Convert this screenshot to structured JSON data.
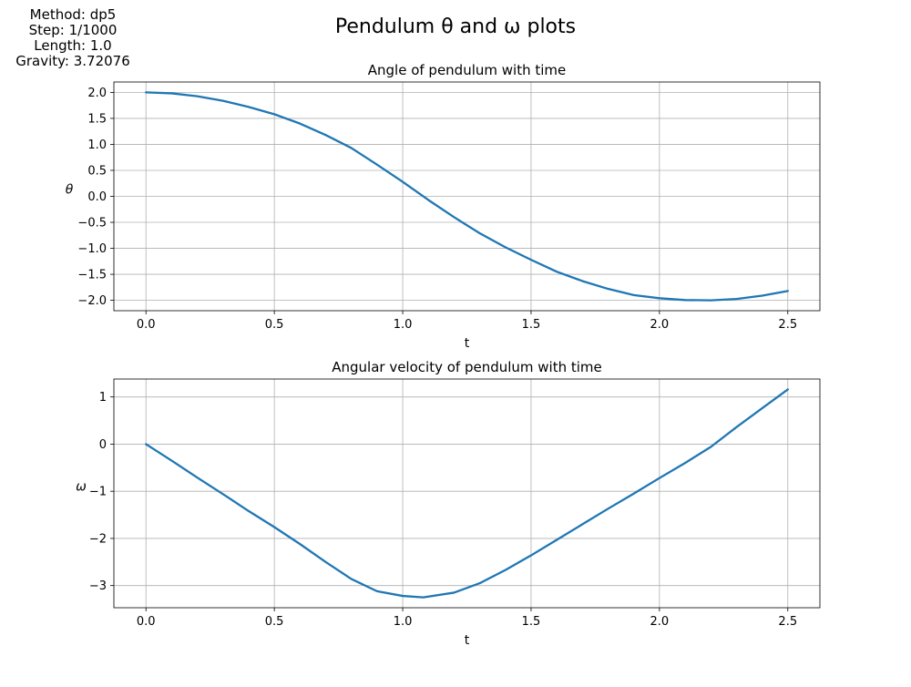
{
  "figure": {
    "suptitle": "Pendulum θ and ω plots",
    "info_lines": [
      "Method: dp5",
      "Step: 1/1000",
      "Length: 1.0",
      "Gravity: 3.72076"
    ]
  },
  "colors": {
    "line": "#1f77b4",
    "grid": "#b0b0b0",
    "axes": "#000000",
    "background": "#ffffff"
  },
  "chart_data": [
    {
      "type": "line",
      "title": "Angle of pendulum with time",
      "xlabel": "t",
      "ylabel": "θ",
      "xlim": [
        -0.125,
        2.625
      ],
      "ylim": [
        -2.2,
        2.2
      ],
      "xticks": [
        0.0,
        0.5,
        1.0,
        1.5,
        2.0,
        2.5
      ],
      "xticklabels": [
        "0.0",
        "0.5",
        "1.0",
        "1.5",
        "2.0",
        "2.5"
      ],
      "yticks": [
        2.0,
        1.5,
        1.0,
        0.5,
        0.0,
        -0.5,
        -1.0,
        -1.5,
        -2.0
      ],
      "yticklabels": [
        "2.0",
        "1.5",
        "1.0",
        "0.5",
        "0.0",
        "−0.5",
        "−1.0",
        "−1.5",
        "−2.0"
      ],
      "grid": true,
      "series": [
        {
          "x": [
            0.0,
            0.1,
            0.2,
            0.3,
            0.4,
            0.5,
            0.6,
            0.7,
            0.8,
            0.9,
            1.0,
            1.1,
            1.2,
            1.3,
            1.4,
            1.5,
            1.6,
            1.7,
            1.8,
            1.9,
            2.0,
            2.1,
            2.2,
            2.3,
            2.4,
            2.5
          ],
          "y": [
            2.0,
            1.982,
            1.926,
            1.838,
            1.72,
            1.58,
            1.4,
            1.18,
            0.93,
            0.61,
            0.28,
            -0.07,
            -0.4,
            -0.71,
            -0.98,
            -1.22,
            -1.45,
            -1.63,
            -1.78,
            -1.9,
            -1.96,
            -1.995,
            -2.0,
            -1.975,
            -1.91,
            -1.82
          ]
        }
      ]
    },
    {
      "type": "line",
      "title": "Angular velocity of pendulum with time",
      "xlabel": "t",
      "ylabel": "ω",
      "xlim": [
        -0.125,
        2.625
      ],
      "ylim": [
        -3.47,
        1.38
      ],
      "xticks": [
        0.0,
        0.5,
        1.0,
        1.5,
        2.0,
        2.5
      ],
      "xticklabels": [
        "0.0",
        "0.5",
        "1.0",
        "1.5",
        "2.0",
        "2.5"
      ],
      "yticks": [
        1,
        0,
        -1,
        -2,
        -3
      ],
      "yticklabels": [
        "1",
        "0",
        "−1",
        "−2",
        "−3"
      ],
      "grid": true,
      "series": [
        {
          "x": [
            0.0,
            0.1,
            0.2,
            0.3,
            0.4,
            0.5,
            0.6,
            0.7,
            0.8,
            0.9,
            1.0,
            1.08,
            1.2,
            1.3,
            1.4,
            1.5,
            1.6,
            1.7,
            1.8,
            1.9,
            2.0,
            2.1,
            2.2,
            2.3,
            2.4,
            2.5
          ],
          "y": [
            0.0,
            -0.35,
            -0.71,
            -1.06,
            -1.42,
            -1.76,
            -2.12,
            -2.5,
            -2.86,
            -3.12,
            -3.22,
            -3.25,
            -3.15,
            -2.95,
            -2.67,
            -2.36,
            -2.03,
            -1.7,
            -1.37,
            -1.05,
            -0.72,
            -0.4,
            -0.06,
            0.36,
            0.76,
            1.16
          ]
        }
      ]
    }
  ]
}
